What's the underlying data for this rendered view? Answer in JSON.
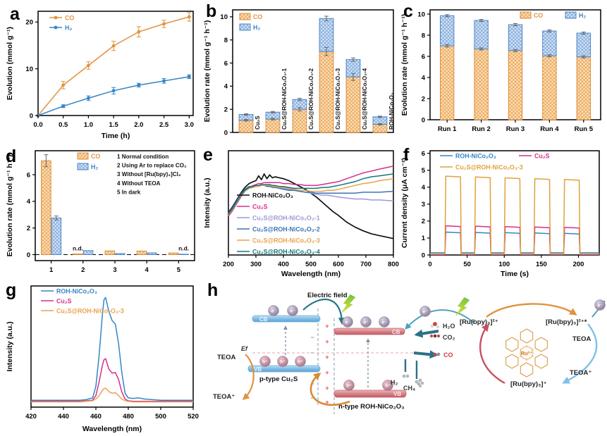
{
  "figure": {
    "letters": {
      "a": "a",
      "b": "b",
      "c": "c",
      "d": "d",
      "e": "e",
      "f": "f",
      "g": "g",
      "h": "h"
    }
  },
  "chart_data": [
    {
      "id": "a",
      "type": "line",
      "xlabel": "Time (h)",
      "ylabel": "Evolution (mmol g⁻¹)",
      "xlim": [
        0,
        3.08
      ],
      "ylim": [
        0,
        22.3
      ],
      "xticks": [
        0,
        0.5,
        1,
        1.5,
        2,
        2.5,
        3
      ],
      "xticklabels": [
        "0.0",
        "0.5",
        "1.0",
        "1.5",
        "2.0",
        "2.5",
        "3.0"
      ],
      "yticks": [
        0,
        10,
        20
      ],
      "yticklabels": [
        "0",
        "10",
        "20"
      ],
      "series": [
        {
          "name": "CO",
          "color": "#E2923E",
          "marker": true,
          "x": [
            0,
            0.5,
            1,
            1.5,
            2,
            2.5,
            3
          ],
          "y": [
            0,
            6.5,
            10.7,
            14.9,
            17.9,
            19.6,
            21.1
          ],
          "yerr": [
            0,
            0.8,
            0.8,
            1.0,
            1.1,
            0.8,
            0.9
          ]
        },
        {
          "name": "H₂",
          "color": "#3585C6",
          "marker": true,
          "x": [
            0,
            0.5,
            1,
            1.5,
            2,
            2.5,
            3
          ],
          "y": [
            0,
            2.0,
            3.7,
            5.3,
            6.5,
            7.4,
            8.3
          ],
          "yerr": [
            0,
            0.3,
            0.5,
            0.7,
            0.4,
            0.5,
            0.4
          ]
        }
      ]
    },
    {
      "id": "b",
      "type": "stacked-bar",
      "xlabel": "",
      "ylabel": "Evolution rate (mmol g⁻¹ h⁻¹)",
      "ylim": [
        0,
        10.6
      ],
      "yticks": [
        0,
        2,
        4,
        6,
        8,
        10
      ],
      "yticklabels": [
        "0",
        "2",
        "4",
        "6",
        "8",
        "10"
      ],
      "categories": [
        "Cu₂S",
        "Cu₂S@ROH-NiCo₂O₃-1",
        "Cu₂S@ROH-NiCo₂O₃-2",
        "Cu₂S@ROH-NiCo₂O₃-3",
        "Cu₂S@ROH-NiCo₂O₃-4",
        "ROH-NiCo₂O₃"
      ],
      "rotated_labels": true,
      "series": [
        {
          "name": "CO",
          "border": "#E08C3A",
          "fill": "#FAE3C2",
          "hatch": "#EBA14E",
          "color": "#E2923E",
          "values": [
            1.05,
            1.15,
            2.0,
            7.0,
            4.8,
            0.7
          ],
          "yerr": [
            0.07,
            0.07,
            0.15,
            0.35,
            0.3,
            0.06
          ]
        },
        {
          "name": "H₂",
          "border": "#4C86C6",
          "fill": "#D6E4F5",
          "hatch": "#7CA6DA",
          "color": "#3585C6",
          "values": [
            0.5,
            0.6,
            0.85,
            2.85,
            1.5,
            0.65
          ],
          "yerr": [
            0.06,
            0.06,
            0.1,
            0.2,
            0.15,
            0.06
          ]
        }
      ]
    },
    {
      "id": "c",
      "type": "stacked-bar",
      "xlabel": "",
      "ylabel": "Evolution rate (mmol g⁻¹ h⁻¹)",
      "ylim": [
        0,
        10.4
      ],
      "yticks": [
        0,
        2,
        4,
        6,
        8,
        10
      ],
      "yticklabels": [
        "0",
        "2",
        "4",
        "6",
        "8",
        "10"
      ],
      "categories": [
        "Run 1",
        "Run 2",
        "Run 3",
        "Run 4",
        "Run 5"
      ],
      "series": [
        {
          "name": "CO",
          "border": "#E08C3A",
          "fill": "#FAE3C2",
          "hatch": "#EBA14E",
          "color": "#E2923E",
          "values": [
            7.0,
            6.7,
            6.55,
            6.05,
            5.95
          ],
          "yerr": [
            0.12,
            0.1,
            0.1,
            0.1,
            0.1
          ]
        },
        {
          "name": "H₂",
          "border": "#4C86C6",
          "fill": "#D6E4F5",
          "hatch": "#7CA6DA",
          "color": "#3585C6",
          "values": [
            2.85,
            2.7,
            2.45,
            2.35,
            2.25
          ],
          "yerr": [
            0.1,
            0.1,
            0.1,
            0.1,
            0.1
          ]
        }
      ]
    },
    {
      "id": "d",
      "type": "grouped-bar",
      "xlabel": "",
      "ylabel": "Evolution rate (mmol g⁻¹ h⁻¹)",
      "ylim": [
        -0.45,
        7.8
      ],
      "yticks": [
        0,
        2,
        4,
        6
      ],
      "yticklabels": [
        "0",
        "2",
        "4",
        "6"
      ],
      "categories": [
        "1",
        "2",
        "3",
        "4",
        "5"
      ],
      "zero_dash": true,
      "conditions": [
        "1 Normal condition",
        "2 Using Ar to replace CO₂",
        "3 Without [Ru(bpy)₃]Cl₂",
        "4 Without TEOA",
        "5 In dark"
      ],
      "annotations": [
        {
          "cat": 1,
          "series": 0,
          "text": "n.d."
        },
        {
          "cat": 4,
          "series": 1,
          "text": "n.d."
        }
      ],
      "series": [
        {
          "name": "CO",
          "border": "#E08C3A",
          "fill": "#FAE3C2",
          "hatch": "#EBA14E",
          "color": "#E2923E",
          "values": [
            7.05,
            0.05,
            0.28,
            0.27,
            0.12
          ],
          "yerr": [
            0.45,
            0,
            0,
            0,
            0
          ]
        },
        {
          "name": "H₂",
          "border": "#4C86C6",
          "fill": "#D6E4F5",
          "hatch": "#7CA6DA",
          "color": "#3585C6",
          "values": [
            2.75,
            0.3,
            0.08,
            0.13,
            0.03
          ],
          "yerr": [
            0.15,
            0,
            0,
            0,
            0
          ]
        }
      ]
    },
    {
      "id": "e",
      "type": "line",
      "xlabel": "Wavelength (nm)",
      "ylabel": "Intensity (a.u.)",
      "xlim": [
        200,
        800
      ],
      "ylim": [
        0,
        1.08
      ],
      "xticks": [
        200,
        300,
        400,
        500,
        600,
        700,
        800
      ],
      "xticklabels": [
        "200",
        "300",
        "400",
        "500",
        "600",
        "700",
        "800"
      ],
      "yticks": [],
      "yticklabels": [],
      "x": [
        200,
        215,
        230,
        245,
        260,
        275,
        290,
        300,
        310,
        320,
        330,
        340,
        350,
        360,
        370,
        385,
        400,
        420,
        440,
        460,
        480,
        500,
        520,
        540,
        560,
        580,
        600,
        630,
        660,
        690,
        720,
        750,
        800
      ],
      "series": [
        {
          "name": "ROH-NiCo₂O₃",
          "color": "#111111",
          "width": 1.7,
          "y": [
            0.44,
            0.5,
            0.57,
            0.64,
            0.7,
            0.74,
            0.76,
            0.77,
            0.82,
            0.78,
            0.84,
            0.79,
            0.83,
            0.8,
            0.81,
            0.8,
            0.79,
            0.77,
            0.74,
            0.71,
            0.68,
            0.64,
            0.6,
            0.55,
            0.5,
            0.45,
            0.41,
            0.34,
            0.29,
            0.25,
            0.22,
            0.2,
            0.17
          ]
        },
        {
          "name": "Cu₂S",
          "color": "#D52E8D",
          "y": [
            0.4,
            0.46,
            0.53,
            0.6,
            0.66,
            0.7,
            0.72,
            0.73,
            0.74,
            0.74,
            0.75,
            0.75,
            0.75,
            0.75,
            0.75,
            0.75,
            0.74,
            0.74,
            0.73,
            0.73,
            0.72,
            0.72,
            0.72,
            0.73,
            0.74,
            0.75,
            0.76,
            0.79,
            0.82,
            0.85,
            0.87,
            0.89,
            0.92
          ]
        },
        {
          "name": "Cu₂S@ROH-NiCo₂O₃-1",
          "color": "#9C99D8",
          "y": [
            0.42,
            0.48,
            0.55,
            0.62,
            0.67,
            0.7,
            0.71,
            0.71,
            0.72,
            0.72,
            0.72,
            0.72,
            0.71,
            0.71,
            0.7,
            0.7,
            0.69,
            0.68,
            0.67,
            0.66,
            0.65,
            0.64,
            0.63,
            0.62,
            0.62,
            0.61,
            0.6,
            0.59,
            0.58,
            0.58,
            0.57,
            0.57,
            0.56
          ]
        },
        {
          "name": "Cu₂S@ROH-NiCo₂O₃-2",
          "color": "#3A74B6",
          "y": [
            0.43,
            0.49,
            0.56,
            0.63,
            0.68,
            0.71,
            0.71,
            0.71,
            0.72,
            0.72,
            0.72,
            0.71,
            0.71,
            0.7,
            0.7,
            0.69,
            0.68,
            0.67,
            0.67,
            0.66,
            0.65,
            0.65,
            0.64,
            0.64,
            0.64,
            0.64,
            0.64,
            0.64,
            0.64,
            0.65,
            0.65,
            0.65,
            0.66
          ]
        },
        {
          "name": "Cu₂S@ROH-NiCo₂O₃-3",
          "color": "#E9A34D",
          "y": [
            0.41,
            0.47,
            0.54,
            0.61,
            0.66,
            0.69,
            0.7,
            0.71,
            0.71,
            0.72,
            0.72,
            0.72,
            0.72,
            0.71,
            0.71,
            0.7,
            0.7,
            0.69,
            0.68,
            0.67,
            0.67,
            0.66,
            0.66,
            0.66,
            0.67,
            0.67,
            0.68,
            0.7,
            0.72,
            0.74,
            0.75,
            0.77,
            0.79
          ]
        },
        {
          "name": "Cu₂S@ROH-NiCo₂O₃-4",
          "color": "#15787C",
          "y": [
            0.42,
            0.48,
            0.55,
            0.62,
            0.67,
            0.7,
            0.71,
            0.72,
            0.72,
            0.73,
            0.73,
            0.73,
            0.73,
            0.72,
            0.72,
            0.71,
            0.71,
            0.7,
            0.69,
            0.69,
            0.69,
            0.69,
            0.69,
            0.7,
            0.7,
            0.71,
            0.72,
            0.74,
            0.76,
            0.79,
            0.81,
            0.82,
            0.84
          ]
        }
      ]
    },
    {
      "id": "f",
      "type": "line",
      "xlabel": "Time (s)",
      "ylabel": "Current density (μA cm⁻²)",
      "xlim": [
        0,
        228
      ],
      "ylim": [
        0,
        6.15
      ],
      "xticks": [
        0,
        50,
        100,
        150,
        200
      ],
      "xticklabels": [
        "0",
        "50",
        "100",
        "150",
        "200"
      ],
      "yticks": [
        0,
        1,
        2,
        3,
        4,
        5,
        6
      ],
      "yticklabels": [
        "0",
        "1",
        "2",
        "3",
        "4",
        "5",
        "6"
      ],
      "series": [
        {
          "name": "ROH-NiCo₂O₃",
          "color": "#3585C6",
          "wave": {
            "on": [
              20,
              60,
              100,
              140,
              180
            ],
            "dur": 22,
            "base": 0.13,
            "levels": [
              1.35,
              1.33,
              1.32,
              1.3,
              1.28
            ]
          }
        },
        {
          "name": "Cu₂S",
          "color": "#D52E8D",
          "wave": {
            "on": [
              20,
              60,
              100,
              140,
              180
            ],
            "dur": 22,
            "base": 0.03,
            "levels": [
              1.72,
              1.7,
              1.67,
              1.65,
              1.63
            ]
          }
        },
        {
          "name": "Cu₂S@ROH-NiCo₂O₃-3",
          "color": "#DFA23C",
          "wave": {
            "on": [
              20,
              60,
              100,
              140,
              180
            ],
            "dur": 22,
            "base": 0.06,
            "levels": [
              4.65,
              4.6,
              4.55,
              4.5,
              4.45
            ]
          }
        }
      ]
    },
    {
      "id": "g",
      "type": "line",
      "xlabel": "Wavelength (nm)",
      "ylabel": "Intensity (a.u.)",
      "xlim": [
        420,
        520
      ],
      "ylim": [
        0,
        1.05
      ],
      "xticks": [
        420,
        440,
        460,
        480,
        500,
        520
      ],
      "xticklabels": [
        "420",
        "440",
        "460",
        "480",
        "500",
        "520"
      ],
      "yticks": [],
      "yticklabels": [],
      "x": [
        420,
        430,
        440,
        450,
        454,
        458,
        460,
        462,
        464,
        465,
        466,
        468,
        470,
        472,
        474,
        476,
        478,
        480,
        483,
        486,
        490,
        495,
        500,
        510,
        520
      ],
      "series": [
        {
          "name": "ROH-NiCo₂O₃",
          "color": "#3585C6",
          "y": [
            0.06,
            0.06,
            0.06,
            0.06,
            0.065,
            0.08,
            0.18,
            0.45,
            0.8,
            0.93,
            0.95,
            0.83,
            0.75,
            0.72,
            0.55,
            0.3,
            0.12,
            0.08,
            0.075,
            0.08,
            0.07,
            0.065,
            0.06,
            0.06,
            0.06
          ]
        },
        {
          "name": "Cu₂S",
          "color": "#D52E8D",
          "y": [
            0.05,
            0.05,
            0.05,
            0.05,
            0.055,
            0.06,
            0.1,
            0.22,
            0.36,
            0.41,
            0.42,
            0.33,
            0.295,
            0.3,
            0.24,
            0.13,
            0.07,
            0.055,
            0.05,
            0.05,
            0.05,
            0.05,
            0.05,
            0.05,
            0.05
          ]
        },
        {
          "name": "Cu₂S@ROH-NiCo₂O₃-3",
          "color": "#E9A34D",
          "y": [
            0.045,
            0.045,
            0.045,
            0.045,
            0.05,
            0.055,
            0.07,
            0.1,
            0.145,
            0.16,
            0.165,
            0.135,
            0.12,
            0.125,
            0.1,
            0.07,
            0.055,
            0.05,
            0.045,
            0.045,
            0.045,
            0.045,
            0.045,
            0.045,
            0.045
          ]
        }
      ]
    }
  ],
  "diagram": {
    "electric_field": "Electric field",
    "cb": "CB",
    "vb": "VB",
    "e_minus": "e⁻",
    "h_plus": "h⁺",
    "ef": "Ef",
    "p_type": "p-type Cu₂S",
    "n_type": "n-type ROH-NiCo₂O₃",
    "teoa": "TEOA",
    "teoa_plus": "TEOA⁺",
    "h2o": "H₂O",
    "co2": "CO₂",
    "co": "CO",
    "h2": "H₂",
    "ch4": "CH₄",
    "ru2": "[Ru(bpy)₃]²⁺",
    "ru2star": "[Ru(bpy)₃]²⁺*",
    "ru1": "[Ru(bpy)₃]⁺",
    "ru_center": "Ru²⁺",
    "plus": "+",
    "minus": "−"
  }
}
